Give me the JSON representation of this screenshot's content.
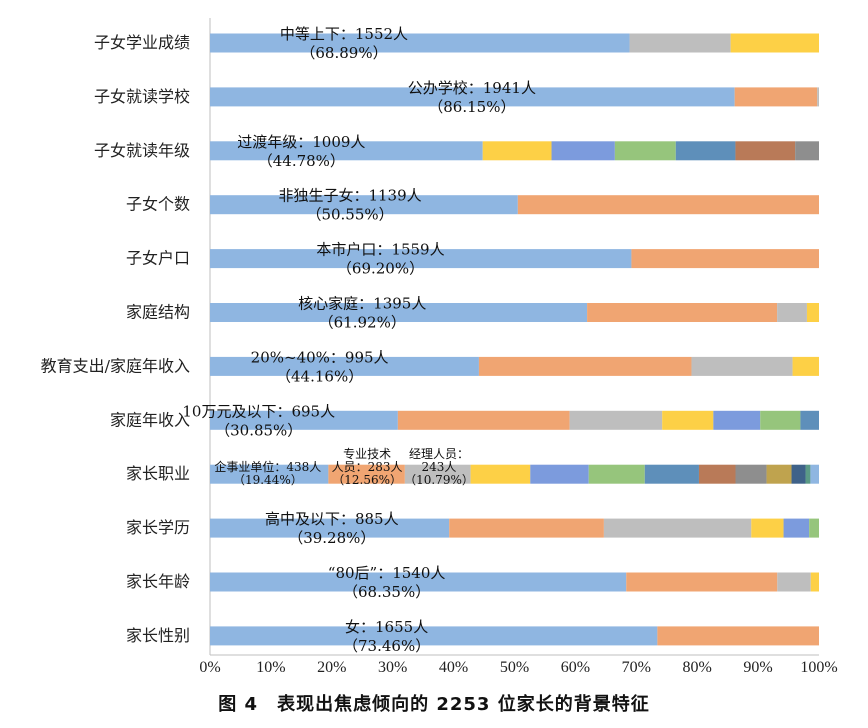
{
  "caption": "图 4　表现出焦虑倾向的 2253 位家长的背景特征",
  "chart_data": {
    "type": "bar",
    "orientation": "horizontal",
    "stacked": "percent",
    "xlim": [
      0,
      100
    ],
    "xticks": [
      "0%",
      "10%",
      "20%",
      "30%",
      "40%",
      "50%",
      "60%",
      "70%",
      "80%",
      "90%",
      "100%"
    ],
    "grid": false,
    "colors": {
      "blue": "#8FB6E1",
      "orange": "#F0A572",
      "gray": "#BEBEBE",
      "yellow": "#FDD046",
      "mblue": "#7C9BDD",
      "green": "#96C57C",
      "steel": "#5E8FBA",
      "brown": "#B97A58",
      "dgray": "#8E8E8E",
      "olive": "#BFA34E",
      "navy": "#3F6289",
      "teal": "#5B9A86"
    },
    "categories": [
      {
        "label": "子女学业成绩",
        "segments": [
          [
            68.89,
            "blue"
          ],
          [
            16.6,
            "gray"
          ],
          [
            14.51,
            "yellow"
          ]
        ],
        "annotation": [
          "中等上下：1552人",
          "（68.89%）"
        ],
        "ann_x": 22
      },
      {
        "label": "子女就读学校",
        "segments": [
          [
            86.15,
            "blue"
          ],
          [
            13.55,
            "orange"
          ],
          [
            0.3,
            "gray"
          ]
        ],
        "annotation": [
          "公办学校：1941人",
          "（86.15%）"
        ],
        "ann_x": 43
      },
      {
        "label": "子女就读年级",
        "segments": [
          [
            44.78,
            "blue"
          ],
          [
            11.3,
            "yellow"
          ],
          [
            10.4,
            "mblue"
          ],
          [
            10.0,
            "green"
          ],
          [
            9.8,
            "steel"
          ],
          [
            9.8,
            "brown"
          ],
          [
            3.92,
            "dgray"
          ]
        ],
        "annotation": [
          "过渡年级：1009人",
          "（44.78%）"
        ],
        "ann_x": 15
      },
      {
        "label": "子女个数",
        "segments": [
          [
            50.55,
            "blue"
          ],
          [
            49.45,
            "orange"
          ]
        ],
        "annotation": [
          "非独生子女：1139人",
          "（50.55%）"
        ],
        "ann_x": 23
      },
      {
        "label": "子女户口",
        "segments": [
          [
            69.2,
            "blue"
          ],
          [
            30.8,
            "orange"
          ]
        ],
        "annotation": [
          "本市户口：1559人",
          "（69.20%）"
        ],
        "ann_x": 28
      },
      {
        "label": "家庭结构",
        "segments": [
          [
            61.92,
            "blue"
          ],
          [
            31.2,
            "orange"
          ],
          [
            4.9,
            "gray"
          ],
          [
            1.98,
            "yellow"
          ]
        ],
        "annotation": [
          "核心家庭：1395人",
          "（61.92%）"
        ],
        "ann_x": 25
      },
      {
        "label": "教育支出/家庭年收入",
        "segments": [
          [
            44.16,
            "blue"
          ],
          [
            34.9,
            "orange"
          ],
          [
            16.6,
            "gray"
          ],
          [
            4.34,
            "yellow"
          ]
        ],
        "annotation": [
          "20%~40%：995人",
          "（44.16%）"
        ],
        "ann_x": 18
      },
      {
        "label": "家庭年收入",
        "segments": [
          [
            30.85,
            "blue"
          ],
          [
            28.2,
            "orange"
          ],
          [
            15.2,
            "gray"
          ],
          [
            8.4,
            "yellow"
          ],
          [
            7.7,
            "mblue"
          ],
          [
            6.6,
            "green"
          ],
          [
            3.05,
            "steel"
          ]
        ],
        "annotation": [
          "10万元及以下：695人",
          "（30.85%）"
        ],
        "ann_x": 8
      },
      {
        "label": "家长职业",
        "segments": [
          [
            19.44,
            "blue"
          ],
          [
            12.56,
            "orange"
          ],
          [
            10.79,
            "gray"
          ],
          [
            9.8,
            "yellow"
          ],
          [
            9.6,
            "mblue"
          ],
          [
            9.2,
            "green"
          ],
          [
            8.9,
            "steel"
          ],
          [
            6.0,
            "brown"
          ],
          [
            5.1,
            "dgray"
          ],
          [
            4.1,
            "olive"
          ],
          [
            2.3,
            "navy"
          ],
          [
            0.8,
            "teal"
          ],
          [
            1.41,
            "blue"
          ]
        ],
        "annotations_small": [
          {
            "lines": [
              "企事业单位：438人",
              "（19.44%）"
            ],
            "x": 9.5
          },
          {
            "lines": [
              "专业技术",
              "人员：283人",
              "（12.56%）"
            ],
            "x": 25.8
          },
          {
            "lines": [
              "经理人员：",
              "243人",
              "（10.79%）"
            ],
            "x": 37.6
          }
        ]
      },
      {
        "label": "家长学历",
        "segments": [
          [
            39.28,
            "blue"
          ],
          [
            25.4,
            "orange"
          ],
          [
            24.2,
            "gray"
          ],
          [
            5.3,
            "yellow"
          ],
          [
            4.2,
            "mblue"
          ],
          [
            1.62,
            "green"
          ]
        ],
        "annotation": [
          "高中及以下：885人",
          "（39.28%）"
        ],
        "ann_x": 20
      },
      {
        "label": "家长年龄",
        "segments": [
          [
            68.35,
            "blue"
          ],
          [
            24.8,
            "orange"
          ],
          [
            5.5,
            "gray"
          ],
          [
            1.35,
            "yellow"
          ]
        ],
        "annotation": [
          "“80后”：1540人",
          "（68.35%）"
        ],
        "ann_x": 29
      },
      {
        "label": "家长性别",
        "segments": [
          [
            73.46,
            "blue"
          ],
          [
            26.54,
            "orange"
          ]
        ],
        "annotation": [
          "女：1655人",
          "（73.46%）"
        ],
        "ann_x": 29
      }
    ]
  }
}
